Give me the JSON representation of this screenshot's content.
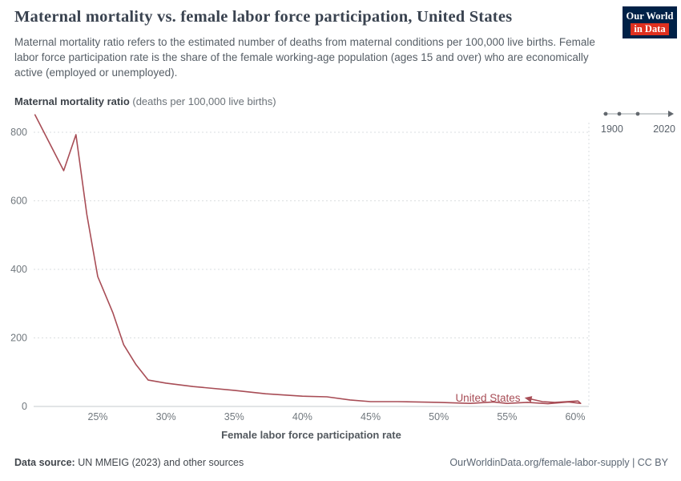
{
  "header": {
    "title": "Maternal mortality vs. female labor force participation, United States",
    "subtitle": "Maternal mortality ratio refers to the estimated number of deaths from maternal conditions per 100,000 live births. Female labor force participation rate is the share of the female working-age population (ages 15 and over) who are economically active (employed or unemployed)."
  },
  "logo": {
    "line1": "Our World",
    "line2": "in Data",
    "bg": "#002147",
    "accent": "#e0301f"
  },
  "timeline": {
    "start_year": "1900",
    "end_year": "2020"
  },
  "axis_header": {
    "title": "Maternal mortality ratio",
    "unit": " (deaths per 100,000 live births)"
  },
  "footer": {
    "source_label": "Data source:",
    "source_text": " UN MMEIG (2023) and other sources",
    "link_text": "OurWorldinData.org/female-labor-supply | CC BY"
  },
  "chart_data": {
    "type": "line",
    "title": "Maternal mortality vs. female labor force participation, United States",
    "xlabel": "Female labor force participation rate",
    "ylabel": "Maternal mortality ratio (deaths per 100,000 live births)",
    "x_ticks": [
      25,
      30,
      35,
      40,
      45,
      50,
      55,
      60
    ],
    "x_tick_suffix": "%",
    "y_ticks": [
      0,
      200,
      400,
      600,
      800
    ],
    "xlim": [
      20.3,
      61
    ],
    "ylim": [
      0,
      800
    ],
    "grid": "horizontal-dotted",
    "legend_position": "inline-end-label",
    "time_range": [
      "1900",
      "2020"
    ],
    "series": [
      {
        "name": "United States",
        "color": "#a84d56",
        "points": [
          [
            20.4,
            851
          ],
          [
            22.5,
            688
          ],
          [
            23.4,
            793
          ],
          [
            24.2,
            560
          ],
          [
            25.0,
            379
          ],
          [
            26.1,
            274
          ],
          [
            26.9,
            180
          ],
          [
            27.8,
            122
          ],
          [
            28.7,
            77
          ],
          [
            30,
            68
          ],
          [
            32,
            58
          ],
          [
            35,
            47
          ],
          [
            37.3,
            37
          ],
          [
            40,
            30
          ],
          [
            41.8,
            28
          ],
          [
            43.5,
            19
          ],
          [
            45,
            14
          ],
          [
            47,
            14
          ],
          [
            50,
            12
          ],
          [
            52.3,
            9
          ],
          [
            54,
            13
          ],
          [
            55,
            9
          ],
          [
            56.5,
            12
          ],
          [
            58,
            8
          ],
          [
            59.5,
            13
          ],
          [
            60.4,
            9
          ],
          [
            60.2,
            16
          ],
          [
            58.5,
            12
          ],
          [
            57.6,
            14
          ],
          [
            56.8,
            21
          ]
        ]
      }
    ]
  }
}
